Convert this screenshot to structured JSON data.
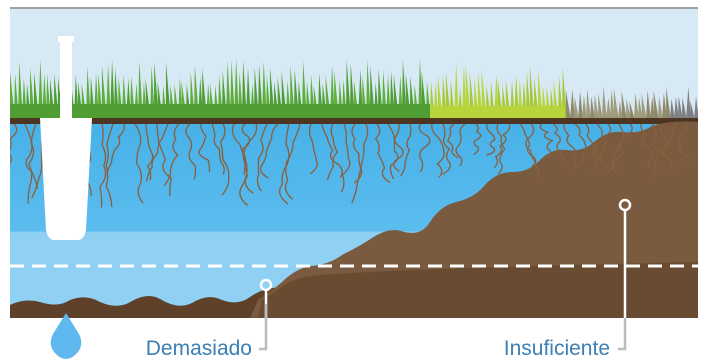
{
  "labels": {
    "too_much": "Demasiado",
    "too_little": "Insuficiente"
  },
  "colors": {
    "sky": "#d6e9f5",
    "grass_dark": "#4f9d33",
    "grass_light": "#b7d43a",
    "grass_dry": "#8f8a6d",
    "water_top": "#4fb6ea",
    "water_bottom": "#8fd0f3",
    "soil_wet": "#7b5b3f",
    "soil_dry": "#5e4128",
    "label": "#3b7fb4",
    "drop": "#5fb8ee"
  },
  "icons": [
    "sprinkler-icon",
    "water-drop-icon"
  ]
}
